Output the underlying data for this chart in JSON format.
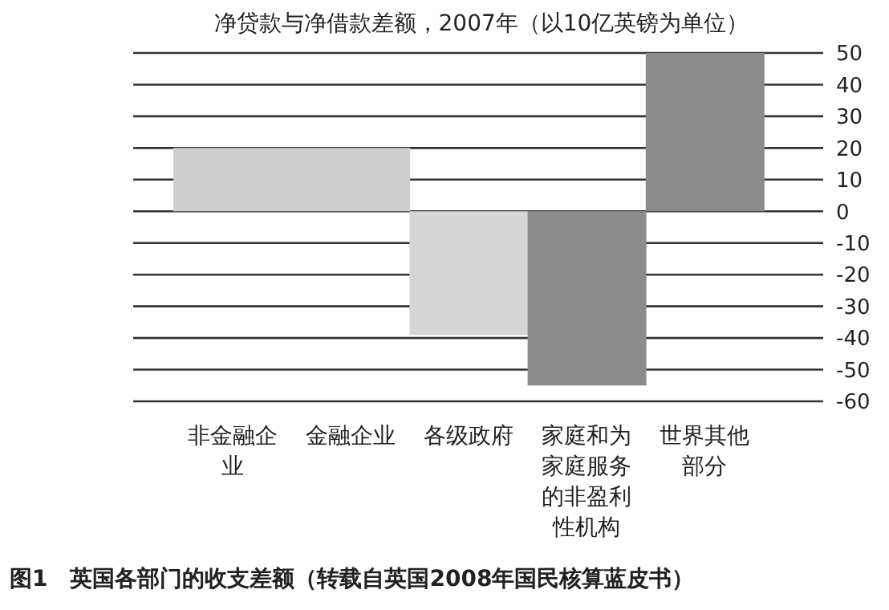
{
  "chart_data": {
    "type": "bar",
    "title": "净贷款与净借款差额，2007年（以10亿英镑为单位）",
    "categories": [
      "非金融企业",
      "金融企业",
      "各级政府",
      "家庭和为家庭服务的非盈利性机构",
      "世界其他部分"
    ],
    "values": [
      20,
      20,
      -39,
      -55,
      50
    ],
    "colors": [
      "#cfcfcf",
      "#cfcfcf",
      "#d6d6d6",
      "#8c8c8c",
      "#8c8c8c"
    ],
    "ylim": [
      -60,
      50
    ],
    "yticks": [
      -60,
      -50,
      -40,
      -30,
      -20,
      -10,
      0,
      10,
      20,
      30,
      40,
      50
    ],
    "grid": "y",
    "annotations": [
      "图1　英国各部门的收支差额（转载自英国2008年国民核算蓝皮书）"
    ]
  }
}
